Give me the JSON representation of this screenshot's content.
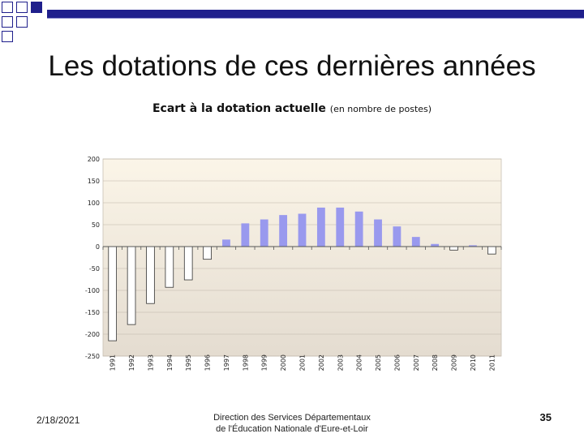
{
  "slide": {
    "title": "Les dotations de ces dernières années",
    "footer_date": "2/18/2021",
    "footer_org_line1": "Direction des Services Départementaux",
    "footer_org_line2": "de l'Éducation Nationale d'Eure-et-Loir",
    "page_number": "35"
  },
  "colors": {
    "accent": "#1f1f8c",
    "plot_bg_top": "#fbf5e8",
    "plot_bg_bottom": "#e4dcd0",
    "positive_bar": "#9999ee",
    "negative_bar": "#ffffff"
  },
  "chart_data": {
    "type": "bar",
    "title": "Ecart à la dotation actuelle",
    "title_suffix": "(en nombre de postes)",
    "xlabel": "",
    "ylabel": "",
    "ylim": [
      -250,
      200
    ],
    "yticks": [
      200,
      150,
      100,
      50,
      0,
      -50,
      -100,
      -150,
      -200,
      -250
    ],
    "ytick_labels": [
      "200",
      "150",
      "100",
      "50",
      "0",
      "-50",
      "-100",
      "-150",
      "-200",
      "-250"
    ],
    "grid": true,
    "legend": "none",
    "categories": [
      "1991",
      "1992",
      "1993",
      "1994",
      "1995",
      "1996",
      "1997",
      "1998",
      "1999",
      "2000",
      "2001",
      "2002",
      "2003",
      "2004",
      "2005",
      "2006",
      "2007",
      "2008",
      "2009",
      "2010",
      "2011"
    ],
    "values": [
      -215,
      -178,
      -130,
      -93,
      -76,
      -29,
      16,
      53,
      62,
      72,
      75,
      89,
      89,
      80,
      62,
      46,
      22,
      6,
      -8,
      3,
      -17
    ]
  }
}
